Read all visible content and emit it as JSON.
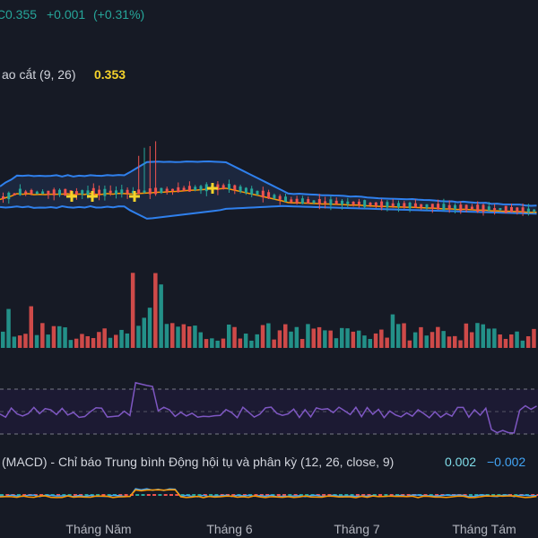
{
  "header": {
    "price_prefix": "C",
    "price": "0.355",
    "change": "+0.001",
    "change_pct": "(+0.31%)"
  },
  "indicator_ma": {
    "label": "ao cắt (9, 26)",
    "value": "0.353"
  },
  "macd": {
    "label": "(MACD) - Chỉ báo Trung bình Động hội tụ và phân kỳ (12, 26, close, 9)",
    "value1": "0.002",
    "value2": "−0.002"
  },
  "time_axis": [
    "Tháng Năm",
    "Tháng 6",
    "Tháng 7",
    "Tháng Tám"
  ],
  "colors": {
    "background": "#161a25",
    "up": "#26a69a",
    "down": "#ef5350",
    "bollinger": "#2f80ed",
    "bollinger_fill": "#1e2a45",
    "ma_orange": "#ff9800",
    "rsi": "#7e57c2",
    "rsi_band": "#1c1a33",
    "marker": "#f5d32b",
    "text": "#d1d4dc",
    "green_text": "#26a69a",
    "yellow_text": "#f5d32b",
    "cyan_text": "#80deea",
    "blue_text": "#42a5f5"
  }
}
